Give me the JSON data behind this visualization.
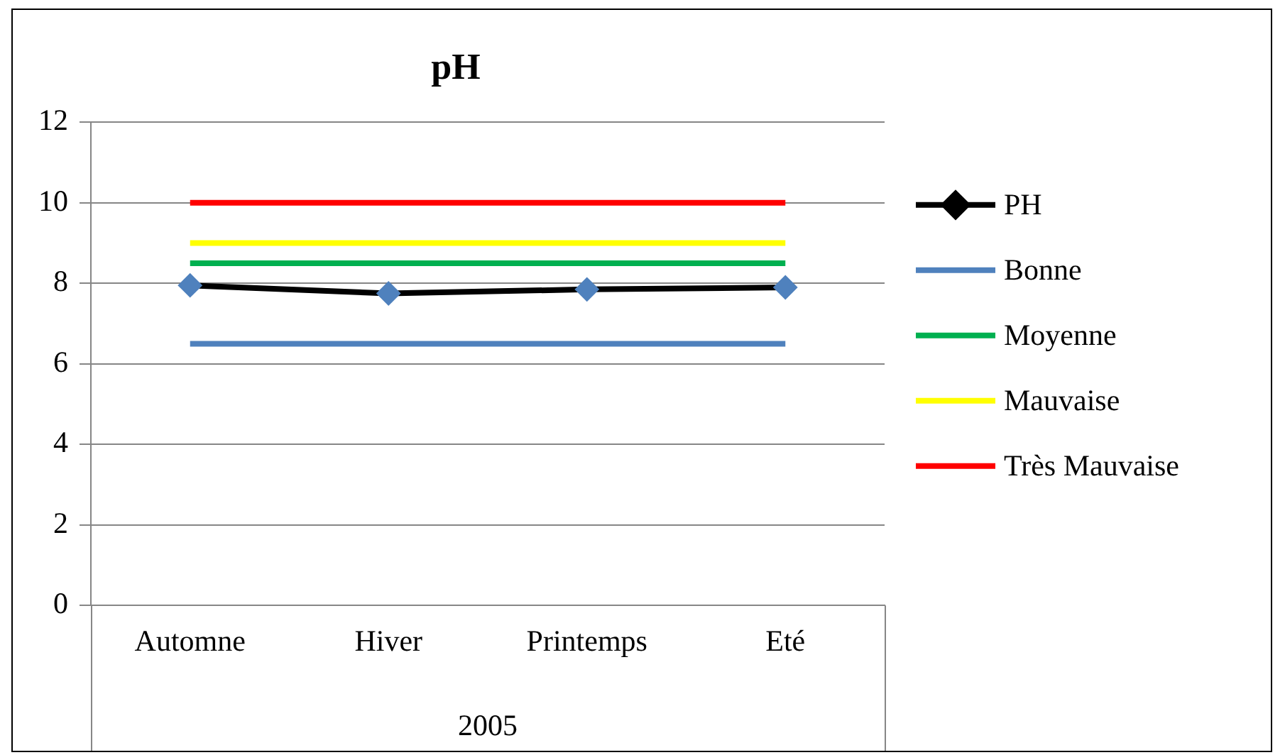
{
  "chart_data": {
    "type": "line",
    "title": "pH",
    "xlabel": "2005",
    "categories": [
      "Automne",
      "Hiver",
      "Printemps",
      "Eté"
    ],
    "series": [
      {
        "name": "PH",
        "color": "#000000",
        "marker": "diamond",
        "values": [
          7.95,
          7.75,
          7.85,
          7.9
        ]
      },
      {
        "name": "Bonne",
        "color": "#4f81bd",
        "marker": "none",
        "values": [
          6.5,
          6.5,
          6.5,
          6.5
        ]
      },
      {
        "name": "Moyenne",
        "color": "#00b050",
        "marker": "none",
        "values": [
          8.5,
          8.5,
          8.5,
          8.5
        ]
      },
      {
        "name": "Mauvaise",
        "color": "#ffff00",
        "marker": "none",
        "values": [
          9,
          9,
          9,
          9
        ]
      },
      {
        "name": "Très Mauvaise",
        "color": "#ff0000",
        "marker": "none",
        "values": [
          10,
          10,
          10,
          10
        ]
      }
    ],
    "ylim": [
      0,
      12
    ],
    "yticks": [
      0,
      2,
      4,
      6,
      8,
      10,
      12
    ],
    "grid": "y",
    "legend": "right"
  }
}
